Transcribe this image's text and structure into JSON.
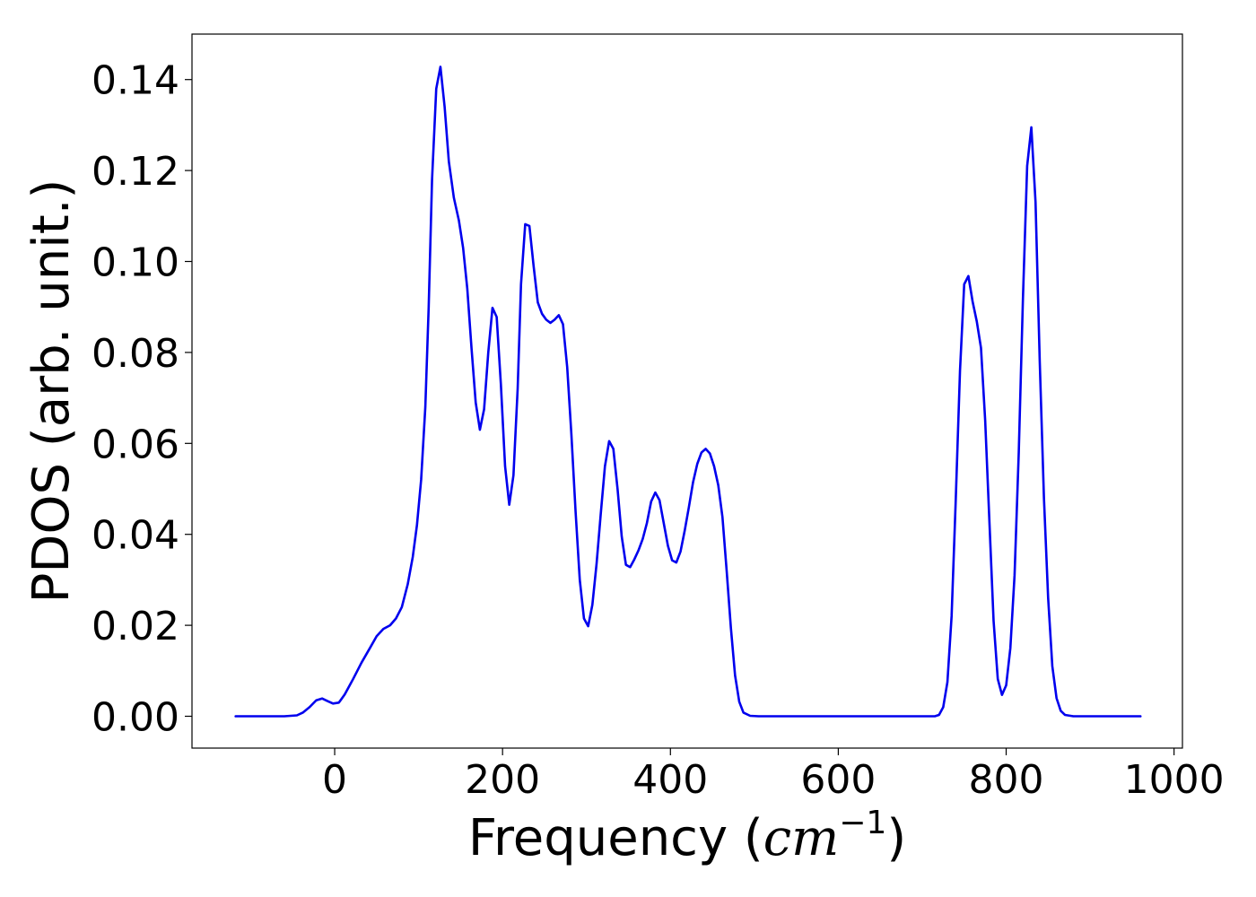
{
  "chart_data": {
    "type": "line",
    "title": "",
    "xlabel": {
      "prefix": "Frequency (",
      "unit": "cm",
      "exponent": "−1",
      "suffix": ")"
    },
    "ylabel": "PDOS (arb. unit.)",
    "xlim": [
      -170,
      1010
    ],
    "ylim": [
      -0.007,
      0.15
    ],
    "x_ticks": [
      0,
      200,
      400,
      600,
      800,
      1000
    ],
    "x_tick_labels": [
      "0",
      "200",
      "400",
      "600",
      "800",
      "1000"
    ],
    "y_ticks": [
      0.0,
      0.02,
      0.04,
      0.06,
      0.08,
      0.1,
      0.12,
      0.14
    ],
    "y_tick_labels": [
      "0.00",
      "0.02",
      "0.04",
      "0.06",
      "0.08",
      "0.10",
      "0.12",
      "0.14"
    ],
    "grid": false,
    "legend": "none",
    "series": [
      {
        "color": "#0000ee",
        "points": [
          [
            -118,
            0.0
          ],
          [
            -60,
            0.0
          ],
          [
            -45,
            0.0002
          ],
          [
            -38,
            0.0008
          ],
          [
            -30,
            0.002
          ],
          [
            -22,
            0.0035
          ],
          [
            -15,
            0.0039
          ],
          [
            -8,
            0.0033
          ],
          [
            -2,
            0.0028
          ],
          [
            5,
            0.003
          ],
          [
            12,
            0.0048
          ],
          [
            22,
            0.0082
          ],
          [
            32,
            0.0118
          ],
          [
            42,
            0.015
          ],
          [
            50,
            0.0176
          ],
          [
            58,
            0.0192
          ],
          [
            66,
            0.02
          ],
          [
            73,
            0.0215
          ],
          [
            80,
            0.024
          ],
          [
            87,
            0.029
          ],
          [
            93,
            0.035
          ],
          [
            98,
            0.042
          ],
          [
            103,
            0.052
          ],
          [
            108,
            0.068
          ],
          [
            112,
            0.09
          ],
          [
            116,
            0.118
          ],
          [
            121,
            0.138
          ],
          [
            126,
            0.1428
          ],
          [
            131,
            0.134
          ],
          [
            136,
            0.122
          ],
          [
            142,
            0.114
          ],
          [
            148,
            0.109
          ],
          [
            153,
            0.103
          ],
          [
            158,
            0.094
          ],
          [
            163,
            0.081
          ],
          [
            168,
            0.069
          ],
          [
            173,
            0.063
          ],
          [
            178,
            0.0675
          ],
          [
            183,
            0.08
          ],
          [
            188,
            0.0898
          ],
          [
            193,
            0.0878
          ],
          [
            198,
            0.073
          ],
          [
            203,
            0.055
          ],
          [
            208,
            0.0465
          ],
          [
            213,
            0.053
          ],
          [
            218,
            0.072
          ],
          [
            222,
            0.095
          ],
          [
            227,
            0.1082
          ],
          [
            232,
            0.1078
          ],
          [
            237,
            0.099
          ],
          [
            242,
            0.091
          ],
          [
            247,
            0.0885
          ],
          [
            252,
            0.0872
          ],
          [
            257,
            0.0865
          ],
          [
            262,
            0.0872
          ],
          [
            267,
            0.0882
          ],
          [
            272,
            0.0862
          ],
          [
            277,
            0.0768
          ],
          [
            282,
            0.062
          ],
          [
            287,
            0.045
          ],
          [
            292,
            0.03
          ],
          [
            297,
            0.0215
          ],
          [
            302,
            0.0198
          ],
          [
            307,
            0.0245
          ],
          [
            312,
            0.0335
          ],
          [
            317,
            0.0445
          ],
          [
            322,
            0.055
          ],
          [
            327,
            0.0605
          ],
          [
            332,
            0.0588
          ],
          [
            337,
            0.05
          ],
          [
            342,
            0.0395
          ],
          [
            347,
            0.0333
          ],
          [
            352,
            0.0328
          ],
          [
            357,
            0.0345
          ],
          [
            362,
            0.0365
          ],
          [
            367,
            0.039
          ],
          [
            372,
            0.0425
          ],
          [
            377,
            0.0472
          ],
          [
            382,
            0.0492
          ],
          [
            387,
            0.0475
          ],
          [
            392,
            0.0425
          ],
          [
            397,
            0.0375
          ],
          [
            402,
            0.0343
          ],
          [
            407,
            0.0338
          ],
          [
            412,
            0.0362
          ],
          [
            417,
            0.0408
          ],
          [
            422,
            0.046
          ],
          [
            427,
            0.0515
          ],
          [
            432,
            0.0555
          ],
          [
            437,
            0.058
          ],
          [
            442,
            0.0588
          ],
          [
            447,
            0.0578
          ],
          [
            452,
            0.055
          ],
          [
            457,
            0.0508
          ],
          [
            462,
            0.0438
          ],
          [
            467,
            0.032
          ],
          [
            472,
            0.0195
          ],
          [
            477,
            0.009
          ],
          [
            482,
            0.0032
          ],
          [
            487,
            0.0008
          ],
          [
            495,
            0.0001
          ],
          [
            505,
            0.0
          ],
          [
            600,
            0.0
          ],
          [
            715,
            0.0
          ],
          [
            720,
            0.0003
          ],
          [
            725,
            0.002
          ],
          [
            730,
            0.0075
          ],
          [
            735,
            0.022
          ],
          [
            740,
            0.048
          ],
          [
            745,
            0.076
          ],
          [
            750,
            0.095
          ],
          [
            755,
            0.0968
          ],
          [
            760,
            0.0912
          ],
          [
            765,
            0.0868
          ],
          [
            770,
            0.081
          ],
          [
            775,
            0.065
          ],
          [
            780,
            0.043
          ],
          [
            785,
            0.021
          ],
          [
            790,
            0.0082
          ],
          [
            795,
            0.0047
          ],
          [
            800,
            0.0068
          ],
          [
            805,
            0.015
          ],
          [
            810,
            0.031
          ],
          [
            815,
            0.058
          ],
          [
            820,
            0.092
          ],
          [
            825,
            0.121
          ],
          [
            830,
            0.1295
          ],
          [
            835,
            0.113
          ],
          [
            840,
            0.078
          ],
          [
            845,
            0.048
          ],
          [
            850,
            0.026
          ],
          [
            855,
            0.011
          ],
          [
            860,
            0.004
          ],
          [
            865,
            0.0012
          ],
          [
            870,
            0.0003
          ],
          [
            880,
            0.0
          ],
          [
            960,
            0.0
          ]
        ]
      }
    ]
  }
}
